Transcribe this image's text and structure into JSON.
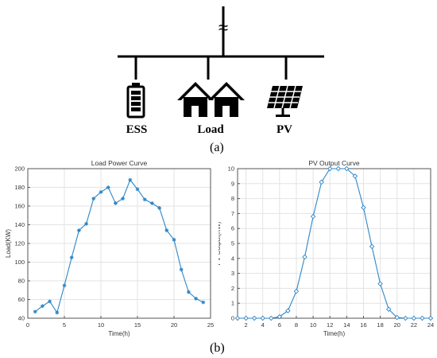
{
  "diagram": {
    "ess_label": "ESS",
    "load_label": "Load",
    "pv_label": "PV",
    "grid_symbol": "≈"
  },
  "captions": {
    "a": "(a)",
    "b": "(b)"
  },
  "icons": {
    "ess": "battery-icon",
    "load": "houses-icon",
    "pv": "solar-panel-icon",
    "grid": "ac-source-icon"
  },
  "colors": {
    "series": "#2e86c8",
    "grid": "#e3e3e3",
    "axis": "#555555"
  },
  "chart_data": [
    {
      "type": "line",
      "title": "Load Power Curve",
      "xlabel": "Time(h)",
      "ylabel": "Load(KW)",
      "xlim": [
        0,
        25
      ],
      "ylim": [
        40,
        200
      ],
      "xticks": [
        0,
        5,
        10,
        15,
        20,
        25
      ],
      "yticks": [
        40,
        60,
        80,
        100,
        120,
        140,
        160,
        180,
        200
      ],
      "grid": true,
      "marker": "star",
      "x": [
        1,
        2,
        3,
        4,
        5,
        6,
        7,
        8,
        9,
        10,
        11,
        12,
        13,
        14,
        15,
        16,
        17,
        18,
        19,
        20,
        21,
        22,
        23,
        24
      ],
      "y": [
        47,
        53,
        58,
        46,
        75,
        105,
        134,
        141,
        168,
        175,
        180,
        163,
        168,
        188,
        178,
        167,
        163,
        158,
        134,
        124,
        92,
        68,
        61,
        57
      ]
    },
    {
      "type": "line",
      "title": "PV Output Curve",
      "xlabel": "Time(h)",
      "ylabel": "PV Output(KW)",
      "xlim": [
        1,
        24
      ],
      "ylim": [
        0,
        10
      ],
      "xticks": [
        2,
        4,
        6,
        8,
        10,
        12,
        14,
        16,
        18,
        20,
        22,
        24
      ],
      "yticks": [
        0,
        1,
        2,
        3,
        4,
        5,
        6,
        7,
        8,
        9,
        10
      ],
      "grid": true,
      "marker": "diamond",
      "x": [
        1,
        2,
        3,
        4,
        5,
        6,
        7,
        8,
        9,
        10,
        11,
        12,
        13,
        14,
        15,
        16,
        17,
        18,
        19,
        20,
        21,
        22,
        23,
        24
      ],
      "y": [
        0,
        0,
        0,
        0,
        0,
        0.1,
        0.5,
        1.8,
        4.1,
        6.8,
        9.1,
        10,
        10,
        10,
        9.5,
        7.4,
        4.8,
        2.3,
        0.6,
        0.05,
        0,
        0,
        0,
        0
      ]
    }
  ]
}
